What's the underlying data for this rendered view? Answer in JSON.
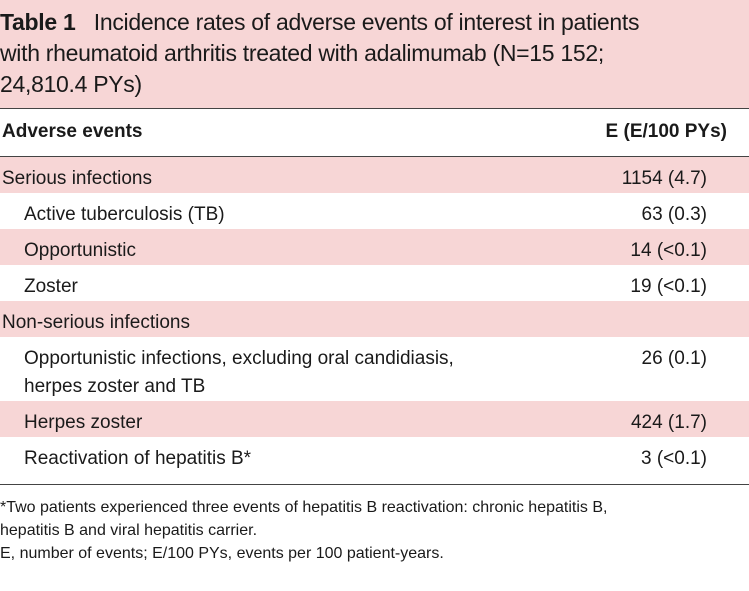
{
  "table": {
    "label": "Table 1",
    "caption_line1": "Incidence rates of adverse events of interest in patients",
    "caption_line2": "with rheumatoid arthritis treated with adalimumab (N=15 152;",
    "caption_line3": "24,810.4 PYs)",
    "header": {
      "col1": "Adverse events",
      "col2": "E (E/100 PYs)"
    },
    "rows": [
      {
        "name": "Serious infections",
        "value": "1154 (4.7)"
      },
      {
        "name": "Active tuberculosis (TB)",
        "value": "63 (0.3)"
      },
      {
        "name": "Opportunistic",
        "value": "14 (<0.1)"
      },
      {
        "name": "Zoster",
        "value": "19 (<0.1)"
      },
      {
        "name": "Non-serious infections",
        "value": ""
      },
      {
        "name_line1": "Opportunistic infections, excluding oral candidiasis,",
        "name_line2": "herpes zoster and TB",
        "value": "26 (0.1)"
      },
      {
        "name": "Herpes zoster",
        "value": "424 (1.7)"
      },
      {
        "name": "Reactivation of hepatitis B*",
        "value": "3 (<0.1)"
      }
    ],
    "footnote_line1": "*Two patients experienced three events of hepatitis B reactivation: chronic hepatitis B,",
    "footnote_line2": "hepatitis B and viral hepatitis carrier.",
    "footnote_line3": "E, number of events; E/100 PYs, events per 100 patient-years.",
    "colors": {
      "band": "#f7d6d6",
      "rule": "#444444"
    }
  }
}
